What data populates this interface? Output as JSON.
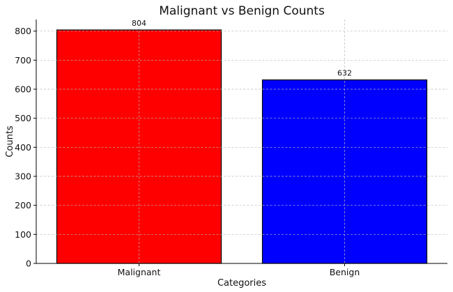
{
  "chart_data": {
    "type": "bar",
    "title": "Malignant vs Benign Counts",
    "xlabel": "Categories",
    "ylabel": "Counts",
    "categories": [
      "Malignant",
      "Benign"
    ],
    "values": [
      804,
      632
    ],
    "data_labels": [
      "804",
      "632"
    ],
    "bar_colors": [
      "#ff0000",
      "#0000ff"
    ],
    "bar_edge_color": "#000000",
    "ylim": [
      0,
      840
    ],
    "yticks": [
      0,
      100,
      200,
      300,
      400,
      500,
      600,
      700,
      800
    ],
    "ytick_labels": [
      "0",
      "100",
      "200",
      "300",
      "400",
      "500",
      "600",
      "700",
      "800"
    ],
    "grid": true,
    "grid_style": "dashed",
    "legend": false
  }
}
